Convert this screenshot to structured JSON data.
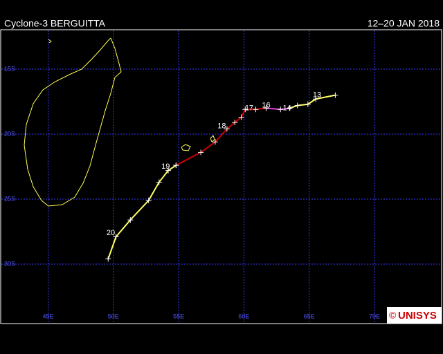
{
  "header": {
    "title": "Cyclone-3 BERGUITTA",
    "dates": "12–20 JAN 2018"
  },
  "grid": {
    "lon": [
      {
        "value": 45,
        "label": "45E"
      },
      {
        "value": 50,
        "label": "50E"
      },
      {
        "value": 55,
        "label": "55E"
      },
      {
        "value": 60,
        "label": "60E"
      },
      {
        "value": 65,
        "label": "65E"
      },
      {
        "value": 70,
        "label": "70E"
      }
    ],
    "lat": [
      {
        "value": 15,
        "label": "15S"
      },
      {
        "value": 20,
        "label": "20S"
      },
      {
        "value": 25,
        "label": "25S"
      },
      {
        "value": 30,
        "label": "30S"
      }
    ]
  },
  "track": {
    "segments": [
      {
        "color": "#ffff66",
        "lon": [
          67.0,
          65.5,
          64.9,
          64.1,
          63.5
        ],
        "lat": [
          17.0,
          17.3,
          17.7,
          17.8,
          18.0
        ]
      },
      {
        "color": "#e040e0",
        "lon": [
          63.5,
          62.8,
          61.7
        ],
        "lat": [
          18.0,
          18.1,
          18.0
        ]
      },
      {
        "color": "#cc0000",
        "lon": [
          61.7,
          60.9,
          60.1,
          59.8,
          59.3,
          58.7,
          57.8,
          56.7,
          54.8
        ],
        "lat": [
          18.0,
          18.1,
          18.1,
          18.7,
          19.1,
          19.6,
          20.6,
          21.4,
          22.4
        ]
      },
      {
        "color": "#ffff66",
        "lon": [
          54.8,
          54.2,
          53.5,
          52.7,
          51.3,
          50.2,
          49.6
        ],
        "lat": [
          22.4,
          22.8,
          23.7,
          25.1,
          26.6,
          27.9,
          29.6
        ]
      }
    ],
    "days": [
      {
        "label": "13",
        "lon": 65.6,
        "lat": 17.0
      },
      {
        "label": "14",
        "lon": 63.3,
        "lat": 18.0
      },
      {
        "label": "16",
        "lon": 61.7,
        "lat": 17.8
      },
      {
        "label": "17",
        "lon": 60.4,
        "lat": 18.0
      },
      {
        "label": "18",
        "lon": 58.3,
        "lat": 19.4
      },
      {
        "label": "19",
        "lon": 54.0,
        "lat": 22.5
      },
      {
        "label": "20",
        "lon": 49.8,
        "lat": 27.6
      }
    ]
  },
  "logo": {
    "copyright": "©",
    "name": "UNISYS"
  }
}
